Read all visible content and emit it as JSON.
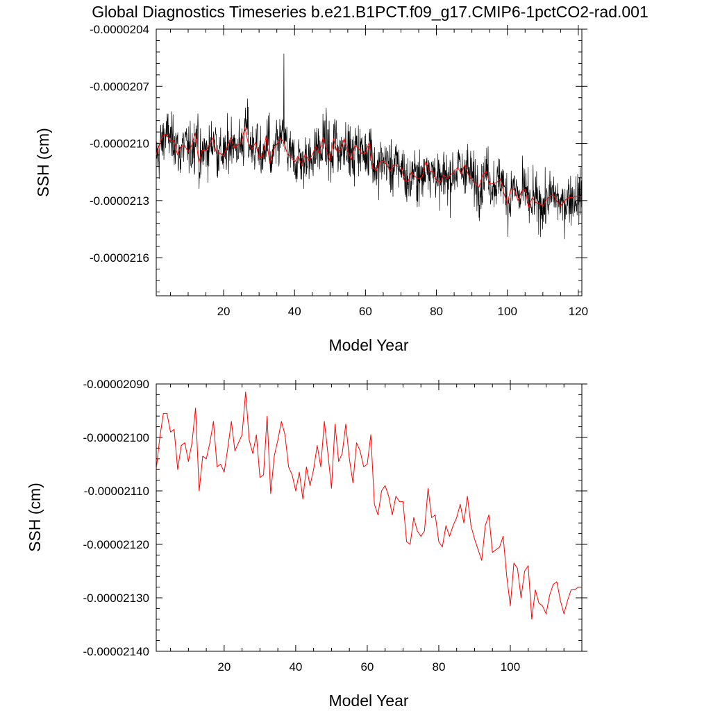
{
  "title": "Global Diagnostics Timeseries b.e21.B1PCT.f09_g17.CMIP6-1pctCO2-rad.001",
  "colors": {
    "monthly": "#000000",
    "annual": "#ff0000",
    "axis": "#000000"
  },
  "chart_data": [
    {
      "type": "line",
      "xlabel": "Model Year",
      "ylabel": "SSH (cm)",
      "xlim": [
        1,
        121
      ],
      "ylim": [
        -2.18e-05,
        -2.04e-05
      ],
      "x_ticks": [
        20,
        40,
        60,
        80,
        100,
        120
      ],
      "x_tick_labels": [
        "20",
        "40",
        "60",
        "80",
        "100",
        "120"
      ],
      "y_ticks": [
        -2.04e-05,
        -2.07e-05,
        -2.1e-05,
        -2.13e-05,
        -2.16e-05
      ],
      "y_tick_labels": [
        "-0.0000204",
        "-0.0000207",
        "-0.0000210",
        "-0.0000213",
        "-0.0000216"
      ],
      "series_note": "monthly values (black) with annual mean (red)",
      "series": [
        {
          "kind": "monthly",
          "color": "#000000",
          "values": []
        },
        {
          "kind": "annual",
          "color": "#ff0000",
          "values": []
        }
      ]
    },
    {
      "type": "line",
      "xlabel": "Model Year",
      "ylabel": "SSH (cm)",
      "xlim": [
        1,
        120
      ],
      "ylim": [
        -2.14e-05,
        -2.09e-05
      ],
      "x_ticks": [
        20,
        40,
        60,
        80,
        100
      ],
      "x_tick_labels": [
        "20",
        "40",
        "60",
        "80",
        "100"
      ],
      "y_ticks": [
        -2.09e-05,
        -2.1e-05,
        -2.11e-05,
        -2.12e-05,
        -2.13e-05,
        -2.14e-05
      ],
      "y_tick_labels": [
        "-0.00002090",
        "-0.00002100",
        "-0.00002110",
        "-0.00002120",
        "-0.00002130",
        "-0.00002140"
      ],
      "series": [
        {
          "kind": "annual",
          "color": "#ff0000",
          "x": [
            1,
            2,
            3,
            4,
            5,
            6,
            7,
            8,
            9,
            10,
            11,
            12,
            13,
            14,
            15,
            16,
            17,
            18,
            19,
            20,
            21,
            22,
            23,
            24,
            25,
            26,
            27,
            28,
            29,
            30,
            31,
            32,
            33,
            34,
            35,
            36,
            37,
            38,
            39,
            40,
            41,
            42,
            43,
            44,
            45,
            46,
            47,
            48,
            49,
            50,
            51,
            52,
            53,
            54,
            55,
            56,
            57,
            58,
            59,
            60,
            61,
            62,
            63,
            64,
            65,
            66,
            67,
            68,
            69,
            70,
            71,
            72,
            73,
            74,
            75,
            76,
            77,
            78,
            79,
            80,
            81,
            82,
            83,
            84,
            85,
            86,
            87,
            88,
            89,
            90,
            91,
            92,
            93,
            94,
            95,
            96,
            97,
            98,
            99,
            100,
            101,
            102,
            103,
            104,
            105,
            106,
            107,
            108,
            109,
            110,
            111,
            112,
            113,
            114,
            115,
            116,
            117,
            118,
            119,
            120
          ],
          "values": [
            -2.106e-05,
            -2.1e-05,
            -2.0955e-05,
            -2.0955e-05,
            -2.099e-05,
            -2.0985e-05,
            -2.106e-05,
            -2.1015e-05,
            -2.101e-05,
            -2.1045e-05,
            -2.101e-05,
            -2.0945e-05,
            -2.11e-05,
            -2.1035e-05,
            -2.104e-05,
            -2.101e-05,
            -2.097e-05,
            -2.1055e-05,
            -2.105e-05,
            -2.1065e-05,
            -2.102e-05,
            -2.097e-05,
            -2.1025e-05,
            -2.101e-05,
            -2.0995e-05,
            -2.0915e-05,
            -2.1005e-05,
            -2.103e-05,
            -2.0995e-05,
            -2.1075e-05,
            -2.107e-05,
            -2.096e-05,
            -2.1105e-05,
            -2.1035e-05,
            -2.1005e-05,
            -2.097e-05,
            -2.0995e-05,
            -2.1055e-05,
            -2.107e-05,
            -2.11e-05,
            -2.1065e-05,
            -2.1115e-05,
            -2.1055e-05,
            -2.109e-05,
            -2.106e-05,
            -2.1015e-05,
            -2.1055e-05,
            -2.097e-05,
            -2.103e-05,
            -2.1095e-05,
            -2.0975e-05,
            -2.1045e-05,
            -2.103e-05,
            -2.0975e-05,
            -2.104e-05,
            -2.1085e-05,
            -2.101e-05,
            -2.1025e-05,
            -2.1055e-05,
            -2.105e-05,
            -2.0995e-05,
            -2.1125e-05,
            -2.1145e-05,
            -2.11e-05,
            -2.109e-05,
            -2.111e-05,
            -2.1145e-05,
            -2.111e-05,
            -2.112e-05,
            -2.112e-05,
            -2.1195e-05,
            -2.12e-05,
            -2.115e-05,
            -2.1175e-05,
            -2.1185e-05,
            -2.1175e-05,
            -2.1095e-05,
            -2.115e-05,
            -2.1145e-05,
            -2.1195e-05,
            -2.1205e-05,
            -2.1165e-05,
            -2.1185e-05,
            -2.1165e-05,
            -2.115e-05,
            -2.1125e-05,
            -2.116e-05,
            -2.111e-05,
            -2.1165e-05,
            -2.119e-05,
            -2.121e-05,
            -2.123e-05,
            -2.1165e-05,
            -2.1145e-05,
            -2.1215e-05,
            -2.121e-05,
            -2.1205e-05,
            -2.1185e-05,
            -2.126e-05,
            -2.1315e-05,
            -2.1235e-05,
            -2.1245e-05,
            -2.13e-05,
            -2.125e-05,
            -2.124e-05,
            -2.134e-05,
            -2.1285e-05,
            -2.131e-05,
            -2.1315e-05,
            -2.133e-05,
            -2.1295e-05,
            -2.1275e-05,
            -2.127e-05,
            -2.1305e-05,
            -2.133e-05,
            -2.1305e-05,
            -2.1285e-05,
            -2.1285e-05,
            -2.128e-05,
            -2.128e-05
          ]
        }
      ]
    }
  ]
}
